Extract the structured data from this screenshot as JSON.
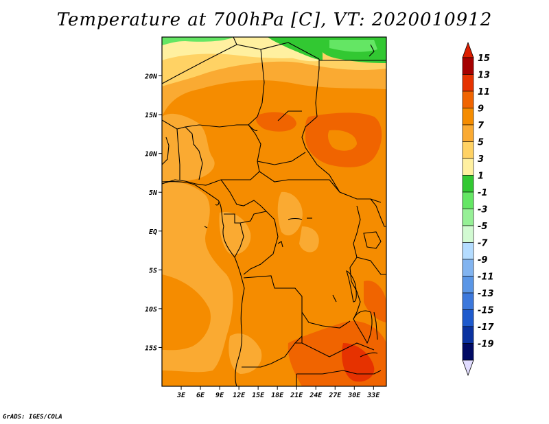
{
  "title": "Temperature at 700hPa [C], VT: 2020010912",
  "credit": "GrADS: IGES/COLA",
  "map": {
    "lat_labels": [
      {
        "text": "20N",
        "lat": 20
      },
      {
        "text": "15N",
        "lat": 15
      },
      {
        "text": "10N",
        "lat": 10
      },
      {
        "text": "5N",
        "lat": 5
      },
      {
        "text": "EQ",
        "lat": 0
      },
      {
        "text": "5S",
        "lat": -5
      },
      {
        "text": "10S",
        "lat": -10
      },
      {
        "text": "15S",
        "lat": -15
      }
    ],
    "lon_labels": [
      {
        "text": "3E",
        "lon": 3
      },
      {
        "text": "6E",
        "lon": 6
      },
      {
        "text": "9E",
        "lon": 9
      },
      {
        "text": "12E",
        "lon": 12
      },
      {
        "text": "15E",
        "lon": 15
      },
      {
        "text": "18E",
        "lon": 18
      },
      {
        "text": "21E",
        "lon": 21
      },
      {
        "text": "24E",
        "lon": 24
      },
      {
        "text": "27E",
        "lon": 27
      },
      {
        "text": "30E",
        "lon": 30
      },
      {
        "text": "33E",
        "lon": 33
      }
    ],
    "lon_range": [
      0,
      35
    ],
    "lat_range": [
      -20,
      25
    ]
  },
  "colorbar": {
    "labels": [
      "15",
      "13",
      "11",
      "9",
      "7",
      "5",
      "3",
      "1",
      "-1",
      "-3",
      "-5",
      "-7",
      "-9",
      "-11",
      "-13",
      "-15",
      "-17",
      "-19"
    ],
    "colors": [
      "#a50000",
      "#e63200",
      "#f06400",
      "#f58c00",
      "#faaa32",
      "#ffd264",
      "#fff0a0",
      "#32c832",
      "#64e664",
      "#96f096",
      "#d2fad2",
      "#b4dcff",
      "#82b4f0",
      "#5a96e6",
      "#3c78dc",
      "#1e5acd",
      "#0a32a0",
      "#000a64"
    ],
    "top_arrow_color": "#dc1e00",
    "bottom_arrow_color": "#e1dcff"
  }
}
